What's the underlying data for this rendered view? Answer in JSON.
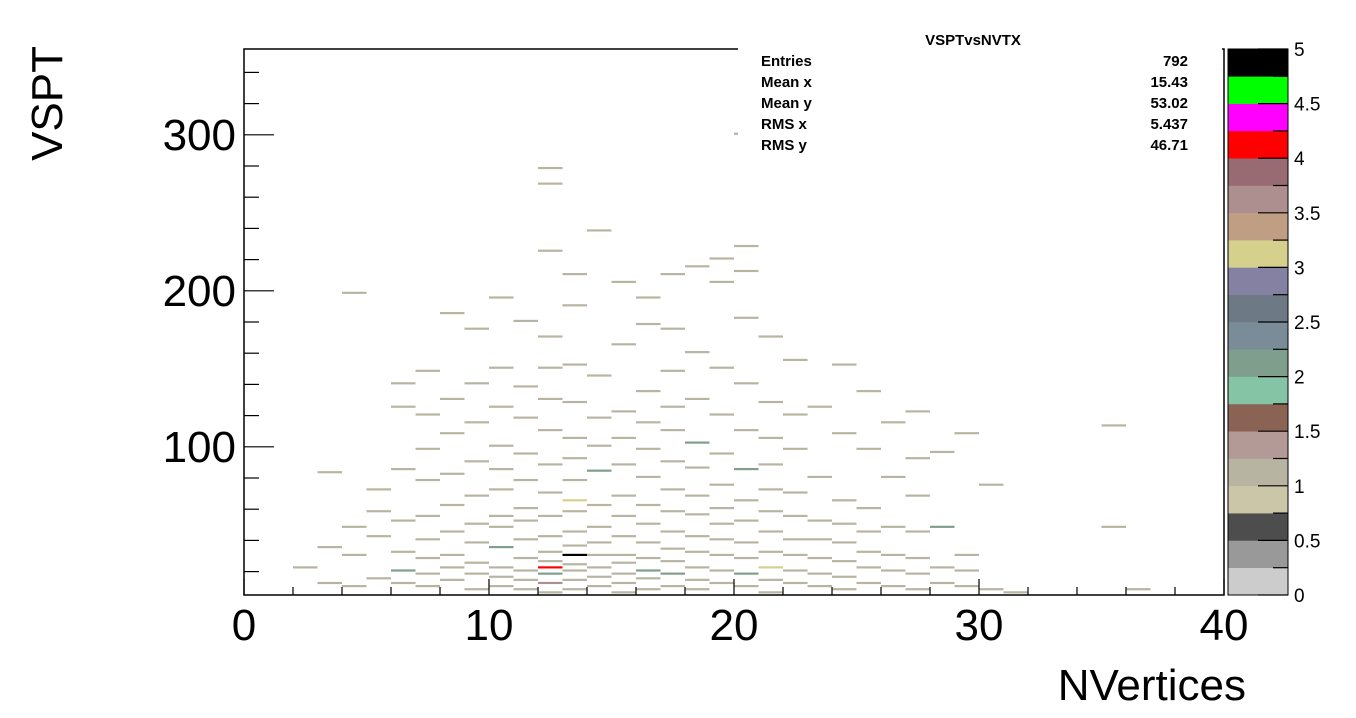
{
  "chart_data": {
    "type": "heatmap",
    "title": "VSPTvsNVTX",
    "xlabel": "NVertices",
    "ylabel": "VSPT",
    "xlim": [
      0,
      40
    ],
    "ylim": [
      5,
      355
    ],
    "x_ticks": [
      "0",
      "10",
      "20",
      "30",
      "40"
    ],
    "y_ticks": [
      "100",
      "200",
      "300"
    ],
    "bin_width_x": 1,
    "bin_height_y": 1.4,
    "z_range": [
      0,
      5
    ],
    "palette_labels": [
      "0",
      "0.5",
      "1",
      "1.5",
      "2",
      "2.5",
      "3",
      "3.5",
      "4",
      "4.5",
      "5"
    ],
    "palette_colors": [
      "#cccccc",
      "#999999",
      "#4d4d4d",
      "#ccc6a8",
      "#b8b4a2",
      "#b49a96",
      "#8a6354",
      "#85c4a4",
      "#7f9e8b",
      "#7b8c99",
      "#6d7a86",
      "#8481a3",
      "#d5d08c",
      "#c09e84",
      "#ae8f8f",
      "#986a71",
      "#ff0000",
      "#ff00ff",
      "#00ff00",
      "#000000"
    ],
    "stats": {
      "title": "VSPTvsNVTX",
      "rows": [
        {
          "label": "Entries",
          "value": "792"
        },
        {
          "label": "Mean x",
          "value": "15.43"
        },
        {
          "label": "Mean y",
          "value": "53.02"
        },
        {
          "label": "RMS x",
          "value": "5.437"
        },
        {
          "label": "RMS y",
          "value": "46.71"
        }
      ]
    },
    "points": [
      [
        2,
        22,
        1
      ],
      [
        3,
        12,
        1
      ],
      [
        3,
        35,
        1
      ],
      [
        3,
        83,
        1
      ],
      [
        4,
        10,
        1
      ],
      [
        4,
        30,
        1
      ],
      [
        4,
        48,
        1
      ],
      [
        4,
        198,
        1
      ],
      [
        5,
        15,
        1
      ],
      [
        5,
        42,
        1
      ],
      [
        5,
        58,
        1
      ],
      [
        5,
        72,
        1
      ],
      [
        6,
        12,
        1
      ],
      [
        6,
        20,
        2.2
      ],
      [
        6,
        32,
        1
      ],
      [
        6,
        52,
        1
      ],
      [
        6,
        85,
        1
      ],
      [
        6,
        125,
        1
      ],
      [
        6,
        140,
        1
      ],
      [
        7,
        10,
        1
      ],
      [
        7,
        18,
        1
      ],
      [
        7,
        28,
        1
      ],
      [
        7,
        40,
        1
      ],
      [
        7,
        55,
        1
      ],
      [
        7,
        78,
        1
      ],
      [
        7,
        98,
        1
      ],
      [
        7,
        120,
        1
      ],
      [
        7,
        148,
        1
      ],
      [
        8,
        14,
        1
      ],
      [
        8,
        22,
        1
      ],
      [
        8,
        30,
        1
      ],
      [
        8,
        45,
        1
      ],
      [
        8,
        62,
        1
      ],
      [
        8,
        82,
        1
      ],
      [
        8,
        108,
        1
      ],
      [
        8,
        130,
        1
      ],
      [
        8,
        185,
        1
      ],
      [
        9,
        8,
        1
      ],
      [
        9,
        18,
        1
      ],
      [
        9,
        25,
        1
      ],
      [
        9,
        38,
        1
      ],
      [
        9,
        50,
        1
      ],
      [
        9,
        68,
        1
      ],
      [
        9,
        90,
        1
      ],
      [
        9,
        115,
        1
      ],
      [
        9,
        140,
        1
      ],
      [
        9,
        175,
        1
      ],
      [
        10,
        10,
        1
      ],
      [
        10,
        16,
        1
      ],
      [
        10,
        22,
        1
      ],
      [
        10,
        35,
        2.2
      ],
      [
        10,
        48,
        1
      ],
      [
        10,
        55,
        1
      ],
      [
        10,
        72,
        1
      ],
      [
        10,
        85,
        1
      ],
      [
        10,
        100,
        1
      ],
      [
        10,
        125,
        1
      ],
      [
        10,
        150,
        1
      ],
      [
        10,
        195,
        1
      ],
      [
        11,
        8,
        1
      ],
      [
        11,
        14,
        1
      ],
      [
        11,
        20,
        1
      ],
      [
        11,
        28,
        1
      ],
      [
        11,
        40,
        1
      ],
      [
        11,
        52,
        1
      ],
      [
        11,
        60,
        1
      ],
      [
        11,
        78,
        1
      ],
      [
        11,
        95,
        1
      ],
      [
        11,
        118,
        1
      ],
      [
        11,
        138,
        1
      ],
      [
        11,
        180,
        1
      ],
      [
        12,
        6,
        1
      ],
      [
        12,
        12,
        3.5
      ],
      [
        12,
        18,
        2.2
      ],
      [
        12,
        22,
        4
      ],
      [
        12,
        26,
        1
      ],
      [
        12,
        32,
        1
      ],
      [
        12,
        42,
        1
      ],
      [
        12,
        55,
        1
      ],
      [
        12,
        70,
        1
      ],
      [
        12,
        88,
        1
      ],
      [
        12,
        110,
        1
      ],
      [
        12,
        130,
        1
      ],
      [
        12,
        150,
        1
      ],
      [
        12,
        170,
        1
      ],
      [
        12,
        225,
        1
      ],
      [
        12,
        268,
        1
      ],
      [
        12,
        278,
        1
      ],
      [
        13,
        8,
        1
      ],
      [
        13,
        14,
        1
      ],
      [
        13,
        20,
        1
      ],
      [
        13,
        24,
        1
      ],
      [
        13,
        30,
        5
      ],
      [
        13,
        36,
        1
      ],
      [
        13,
        45,
        1
      ],
      [
        13,
        58,
        1
      ],
      [
        13,
        65,
        3
      ],
      [
        13,
        78,
        1
      ],
      [
        13,
        92,
        1
      ],
      [
        13,
        105,
        1
      ],
      [
        13,
        128,
        1
      ],
      [
        13,
        152,
        1
      ],
      [
        13,
        190,
        1
      ],
      [
        13,
        210,
        1
      ],
      [
        14,
        10,
        1
      ],
      [
        14,
        16,
        1
      ],
      [
        14,
        22,
        1
      ],
      [
        14,
        30,
        1
      ],
      [
        14,
        38,
        1
      ],
      [
        14,
        48,
        1
      ],
      [
        14,
        62,
        1
      ],
      [
        14,
        84,
        2.2
      ],
      [
        14,
        100,
        1
      ],
      [
        14,
        118,
        1
      ],
      [
        14,
        145,
        1
      ],
      [
        14,
        238,
        1
      ],
      [
        15,
        6,
        1
      ],
      [
        15,
        12,
        1
      ],
      [
        15,
        18,
        1
      ],
      [
        15,
        25,
        1
      ],
      [
        15,
        30,
        1
      ],
      [
        15,
        42,
        1
      ],
      [
        15,
        55,
        1
      ],
      [
        15,
        68,
        1
      ],
      [
        15,
        88,
        1
      ],
      [
        15,
        105,
        1
      ],
      [
        15,
        122,
        1
      ],
      [
        15,
        165,
        1
      ],
      [
        15,
        205,
        1
      ],
      [
        16,
        8,
        1
      ],
      [
        16,
        15,
        1
      ],
      [
        16,
        20,
        2.2
      ],
      [
        16,
        28,
        1
      ],
      [
        16,
        38,
        1
      ],
      [
        16,
        50,
        1
      ],
      [
        16,
        62,
        1
      ],
      [
        16,
        80,
        1
      ],
      [
        16,
        98,
        1
      ],
      [
        16,
        115,
        1
      ],
      [
        16,
        135,
        1
      ],
      [
        16,
        178,
        1
      ],
      [
        16,
        195,
        1
      ],
      [
        17,
        10,
        1
      ],
      [
        17,
        18,
        2.2
      ],
      [
        17,
        26,
        1
      ],
      [
        17,
        34,
        1
      ],
      [
        17,
        45,
        1
      ],
      [
        17,
        58,
        1
      ],
      [
        17,
        72,
        1
      ],
      [
        17,
        90,
        1
      ],
      [
        17,
        110,
        1
      ],
      [
        17,
        125,
        1
      ],
      [
        17,
        148,
        1
      ],
      [
        17,
        175,
        1
      ],
      [
        17,
        210,
        1
      ],
      [
        18,
        8,
        1
      ],
      [
        18,
        14,
        1
      ],
      [
        18,
        22,
        1
      ],
      [
        18,
        32,
        1
      ],
      [
        18,
        42,
        1
      ],
      [
        18,
        56,
        1
      ],
      [
        18,
        68,
        1
      ],
      [
        18,
        86,
        1
      ],
      [
        18,
        102,
        2.2
      ],
      [
        18,
        130,
        1
      ],
      [
        18,
        160,
        1
      ],
      [
        18,
        215,
        1
      ],
      [
        19,
        12,
        1
      ],
      [
        19,
        20,
        1
      ],
      [
        19,
        30,
        1
      ],
      [
        19,
        40,
        1
      ],
      [
        19,
        50,
        1
      ],
      [
        19,
        60,
        1
      ],
      [
        19,
        75,
        1
      ],
      [
        19,
        95,
        1
      ],
      [
        19,
        120,
        1
      ],
      [
        19,
        150,
        1
      ],
      [
        19,
        205,
        1
      ],
      [
        19,
        220,
        1
      ],
      [
        20,
        10,
        1
      ],
      [
        20,
        18,
        2.2
      ],
      [
        20,
        28,
        1
      ],
      [
        20,
        38,
        1
      ],
      [
        20,
        52,
        1
      ],
      [
        20,
        65,
        1
      ],
      [
        20,
        85,
        2.2
      ],
      [
        20,
        110,
        1
      ],
      [
        20,
        140,
        1
      ],
      [
        20,
        182,
        1
      ],
      [
        20,
        212,
        1
      ],
      [
        20,
        228,
        1
      ],
      [
        21,
        6,
        1
      ],
      [
        21,
        14,
        1
      ],
      [
        21,
        22,
        3
      ],
      [
        21,
        32,
        1
      ],
      [
        21,
        45,
        1
      ],
      [
        21,
        58,
        1
      ],
      [
        21,
        72,
        1
      ],
      [
        21,
        88,
        1
      ],
      [
        21,
        105,
        1
      ],
      [
        21,
        128,
        1
      ],
      [
        21,
        170,
        1
      ],
      [
        22,
        12,
        1
      ],
      [
        22,
        20,
        1
      ],
      [
        22,
        30,
        1
      ],
      [
        22,
        40,
        1
      ],
      [
        22,
        55,
        1
      ],
      [
        22,
        70,
        1
      ],
      [
        22,
        98,
        1
      ],
      [
        22,
        120,
        1
      ],
      [
        22,
        155,
        1
      ],
      [
        23,
        10,
        1
      ],
      [
        23,
        18,
        1
      ],
      [
        23,
        28,
        1
      ],
      [
        23,
        40,
        1
      ],
      [
        23,
        52,
        1
      ],
      [
        23,
        80,
        1
      ],
      [
        23,
        125,
        1
      ],
      [
        24,
        8,
        1
      ],
      [
        24,
        16,
        1
      ],
      [
        24,
        26,
        1
      ],
      [
        24,
        38,
        1
      ],
      [
        24,
        50,
        1
      ],
      [
        24,
        65,
        1
      ],
      [
        24,
        108,
        1
      ],
      [
        24,
        152,
        1
      ],
      [
        25,
        12,
        1
      ],
      [
        25,
        22,
        1
      ],
      [
        25,
        32,
        1
      ],
      [
        25,
        45,
        1
      ],
      [
        25,
        60,
        1
      ],
      [
        25,
        98,
        1
      ],
      [
        25,
        135,
        1
      ],
      [
        26,
        10,
        1
      ],
      [
        26,
        20,
        1
      ],
      [
        26,
        30,
        1
      ],
      [
        26,
        48,
        1
      ],
      [
        26,
        80,
        1
      ],
      [
        26,
        115,
        1
      ],
      [
        27,
        8,
        1
      ],
      [
        27,
        18,
        1
      ],
      [
        27,
        28,
        1
      ],
      [
        27,
        45,
        1
      ],
      [
        27,
        68,
        1
      ],
      [
        27,
        92,
        1
      ],
      [
        27,
        122,
        1
      ],
      [
        28,
        12,
        1
      ],
      [
        28,
        22,
        1
      ],
      [
        28,
        48,
        2.2
      ],
      [
        28,
        96,
        1
      ],
      [
        29,
        10,
        1
      ],
      [
        29,
        20,
        1
      ],
      [
        29,
        30,
        1
      ],
      [
        29,
        108,
        1
      ],
      [
        30,
        8,
        1
      ],
      [
        30,
        75,
        1
      ],
      [
        31,
        6,
        1
      ],
      [
        35,
        48,
        1
      ],
      [
        35,
        113,
        1
      ],
      [
        36,
        8,
        1
      ],
      [
        20,
        300,
        1
      ]
    ]
  }
}
